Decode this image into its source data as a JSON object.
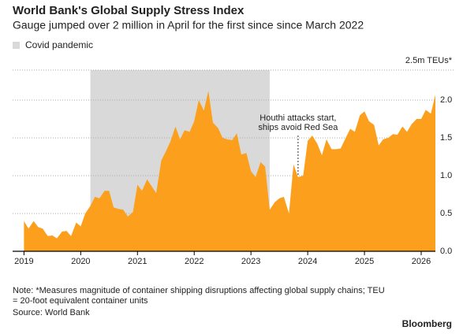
{
  "chart_data": {
    "type": "area",
    "title": "World Bank's Global Supply Stress Index",
    "subtitle": "Gauge jumped over 2 million in April for the first since since March 2022",
    "shaded": {
      "label": "Covid pandemic",
      "x": [
        2020.17,
        2023.33
      ],
      "color": "#d9d9d9"
    },
    "annotation": {
      "text": [
        "Houthi attacks start,",
        "ships avoid Red Sea"
      ],
      "x": 2023.83
    },
    "note": "Note: *Measures magnitude of container shipping disruptions affecting global supply chains; TEU = 20-foot equivalent container units",
    "source": "Source: World Bank",
    "credit": "Bloomberg",
    "x": [
      2019,
      2019.08,
      2019.17,
      2019.25,
      2019.33,
      2019.42,
      2019.5,
      2019.58,
      2019.67,
      2019.75,
      2019.83,
      2019.92,
      2020,
      2020.08,
      2020.17,
      2020.25,
      2020.33,
      2020.42,
      2020.5,
      2020.58,
      2020.67,
      2020.75,
      2020.83,
      2020.92,
      2021,
      2021.08,
      2021.17,
      2021.25,
      2021.33,
      2021.42,
      2021.5,
      2021.58,
      2021.67,
      2021.75,
      2021.83,
      2021.92,
      2022,
      2022.08,
      2022.17,
      2022.25,
      2022.33,
      2022.42,
      2022.5,
      2022.58,
      2022.67,
      2022.75,
      2022.83,
      2022.92,
      2023,
      2023.08,
      2023.17,
      2023.25,
      2023.33,
      2023.42,
      2023.5,
      2023.58,
      2023.67,
      2023.75,
      2023.83,
      2023.92,
      2024,
      2024.08,
      2024.17,
      2024.25,
      2024.33,
      2024.42,
      2024.5,
      2024.58,
      2024.67,
      2024.75,
      2024.83,
      2024.92,
      2025,
      2025.08,
      2025.17,
      2025.25,
      2025.33,
      2025.42,
      2025.5,
      2025.58,
      2025.67,
      2025.75,
      2025.83,
      2025.92,
      2026,
      2026.08,
      2026.17,
      2026.25
    ],
    "series": [
      {
        "color": "#fb9f1c",
        "values": [
          0.4,
          0.3,
          0.4,
          0.32,
          0.3,
          0.2,
          0.21,
          0.17,
          0.26,
          0.27,
          0.2,
          0.38,
          0.33,
          0.5,
          0.6,
          0.72,
          0.7,
          0.8,
          0.8,
          0.58,
          0.56,
          0.55,
          0.46,
          0.52,
          0.88,
          0.8,
          0.95,
          0.86,
          0.77,
          1.2,
          1.32,
          1.45,
          1.65,
          1.48,
          1.6,
          1.58,
          1.72,
          2.0,
          1.86,
          2.12,
          1.7,
          1.63,
          1.5,
          1.48,
          1.47,
          1.56,
          1.28,
          1.3,
          1.06,
          0.98,
          1.18,
          1.12,
          0.55,
          0.65,
          0.7,
          0.72,
          0.5,
          1.15,
          0.98,
          1.0,
          1.46,
          1.53,
          1.42,
          1.27,
          1.48,
          1.35,
          1.35,
          1.36,
          1.5,
          1.62,
          1.58,
          1.8,
          1.85,
          1.72,
          1.67,
          1.4,
          1.48,
          1.5,
          1.55,
          1.54,
          1.65,
          1.58,
          1.68,
          1.75,
          1.75,
          1.87,
          1.82,
          2.07
        ]
      }
    ],
    "xlim": [
      2018.8,
      2026.25
    ],
    "xticks": [
      2019,
      2020,
      2021,
      2022,
      2023,
      2024,
      2025,
      2026
    ],
    "ylim": [
      0,
      2.5
    ],
    "yticks": [
      {
        "value": 0,
        "label": "0.0"
      },
      0.5,
      {
        "value": 1,
        "label": "1.0"
      },
      1.5,
      {
        "value": 2,
        "label": "2.0"
      },
      {
        "value": 2.5,
        "label": "2.5m TEUs*"
      }
    ],
    "grid": true
  }
}
